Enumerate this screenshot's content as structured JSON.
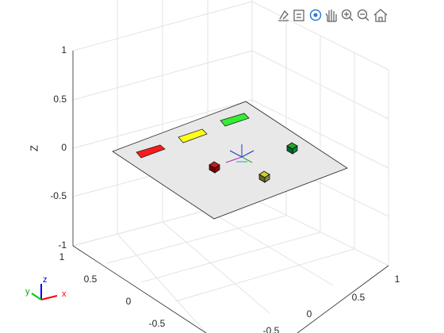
{
  "axes": {
    "zlabel": "Z",
    "zticks": [
      "1",
      "0.5",
      "0",
      "-0.5",
      "-1"
    ],
    "yticks": [
      "1",
      "0.5",
      "0",
      "-0.5"
    ],
    "xticks": [
      "1",
      "0.5",
      "0",
      "-0.5"
    ]
  },
  "orientation": {
    "x": "x",
    "y": "y",
    "z": "z"
  }
}
